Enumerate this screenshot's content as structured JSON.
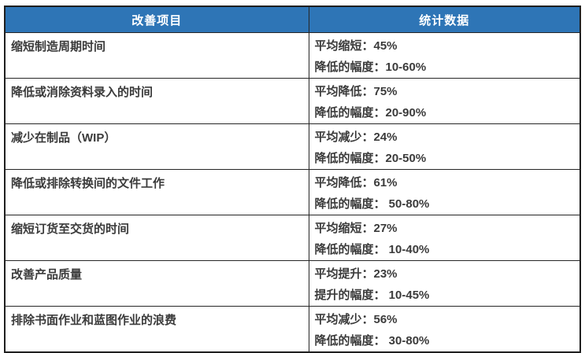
{
  "table": {
    "headers": {
      "item": "改善项目",
      "stats": "统计数据"
    },
    "rows": [
      {
        "item": "缩短制造周期时间",
        "stat1": "平均缩短：45%",
        "stat2": "降低的幅度：10-60%"
      },
      {
        "item": "降低或消除资料录入的时间",
        "stat1": "平均降低：75%",
        "stat2": "降低的幅度：20-90%"
      },
      {
        "item": "减少在制品（WIP）",
        "stat1": "平均减少：24%",
        "stat2": "降低的幅度：20-50%"
      },
      {
        "item": "降低或排除转换间的文件工作",
        "stat1": "平均降低：61%",
        "stat2": "降低的幅度： 50-80%"
      },
      {
        "item": "缩短订货至交货的时间",
        "stat1": "平均缩短：27%",
        "stat2": "降低的幅度： 10-40%"
      },
      {
        "item": "改善产品质量",
        "stat1": "平均提升：23%",
        "stat2": "提升的幅度： 10-45%"
      },
      {
        "item": "排除书面作业和蓝图作业的浪费",
        "stat1": "平均减少：56%",
        "stat2": "降低的幅度： 30-80%"
      }
    ]
  },
  "colors": {
    "header_bg": "#2E75B6",
    "header_text": "#FFFFFF",
    "body_text": "#3B3B3B",
    "border": "#262626"
  }
}
